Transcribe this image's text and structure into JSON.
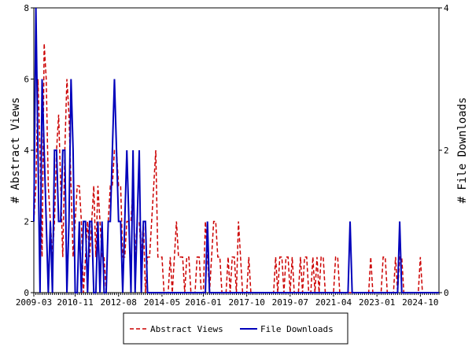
{
  "chart_data": {
    "type": "line",
    "y_label": "# Abstract Views",
    "y2_label": "# File Downloads",
    "categories": [
      "2009-03",
      null,
      null,
      null,
      null,
      null,
      null,
      null,
      null,
      null,
      null,
      null,
      null,
      null,
      null,
      null,
      null,
      null,
      null,
      null,
      "2010-11",
      null,
      null,
      null,
      null,
      null,
      null,
      null,
      null,
      null,
      null,
      null,
      null,
      null,
      null,
      null,
      null,
      null,
      null,
      null,
      null,
      "2012-08",
      null,
      null,
      null,
      null,
      null,
      null,
      null,
      null,
      null,
      null,
      null,
      null,
      null,
      null,
      null,
      null,
      null,
      null,
      null,
      null,
      "2014-05",
      null,
      null,
      null,
      null,
      null,
      null,
      null,
      null,
      null,
      null,
      null,
      null,
      null,
      null,
      null,
      null,
      null,
      null,
      null,
      "2016-01",
      null,
      null,
      null,
      null,
      null,
      null,
      null,
      null,
      null,
      null,
      null,
      null,
      null,
      null,
      null,
      null,
      null,
      null,
      null,
      null,
      "2017-10",
      null,
      null,
      null,
      null,
      null,
      null,
      null,
      null,
      null,
      null,
      null,
      null,
      null,
      null,
      null,
      null,
      null,
      null,
      null,
      null,
      "2019-07",
      null,
      null,
      null,
      null,
      null,
      null,
      null,
      null,
      null,
      null,
      null,
      null,
      null,
      null,
      null,
      null,
      null,
      null,
      null,
      null,
      "2021-04",
      null,
      null,
      null,
      null,
      null,
      null,
      null,
      null,
      null,
      null,
      null,
      null,
      null,
      null,
      null,
      null,
      null,
      null,
      null,
      null,
      "2023-01",
      null,
      null,
      null,
      null,
      null,
      null,
      null,
      null,
      null,
      null,
      null,
      null,
      null,
      null,
      null,
      null,
      null,
      null,
      null,
      null,
      "2024-10",
      null,
      null,
      null,
      null,
      null,
      null,
      null,
      null,
      null
    ],
    "series": [
      {
        "name": "Abstract Views",
        "color": "#cc0000",
        "dash": true,
        "values": [
          2,
          3,
          6,
          4,
          1,
          7,
          6,
          3,
          2,
          1,
          2,
          4,
          5,
          3,
          1,
          4,
          6,
          5,
          3,
          1,
          2,
          3,
          3,
          2,
          0,
          1,
          2,
          1,
          2,
          3,
          1,
          3,
          2,
          1,
          1,
          0,
          2,
          3,
          3,
          4,
          4,
          3,
          3,
          1,
          1,
          2,
          2,
          2,
          3,
          1,
          2,
          2,
          1,
          2,
          0,
          1,
          1,
          2,
          3,
          4,
          1,
          1,
          1,
          0,
          0,
          0,
          1,
          0,
          1,
          2,
          1,
          1,
          1,
          0,
          1,
          1,
          0,
          0,
          0,
          1,
          1,
          0,
          0,
          2,
          1,
          0,
          1,
          2,
          2,
          1,
          1,
          0,
          0,
          0,
          1,
          0,
          1,
          1,
          0,
          2,
          1,
          0,
          0,
          0,
          1,
          0,
          0,
          0,
          0,
          0,
          0,
          0,
          0,
          0,
          0,
          0,
          0,
          1,
          0,
          1,
          1,
          0,
          1,
          1,
          0,
          1,
          0,
          0,
          0,
          1,
          0,
          1,
          1,
          0,
          0,
          1,
          0,
          1,
          0,
          1,
          1,
          0,
          0,
          0,
          0,
          0,
          1,
          1,
          0,
          0,
          0,
          0,
          0,
          0,
          0,
          0,
          0,
          0,
          0,
          0,
          0,
          0,
          0,
          1,
          0,
          0,
          0,
          0,
          0,
          1,
          1,
          0,
          0,
          0,
          0,
          1,
          0,
          1,
          1,
          0,
          0,
          0,
          0,
          0,
          0,
          0,
          0,
          1,
          0,
          0,
          0,
          0,
          0,
          0,
          0,
          0,
          0
        ]
      },
      {
        "name": "File Downloads",
        "color": "#0000bb",
        "axis": "y2",
        "values": [
          1,
          4,
          2,
          0,
          3,
          2,
          1,
          0,
          1,
          0,
          2,
          2,
          1,
          1,
          2,
          2,
          0,
          1,
          3,
          2,
          0,
          0,
          1,
          0,
          1,
          1,
          0,
          1,
          1,
          0,
          0,
          1,
          0,
          1,
          0,
          0,
          1,
          1,
          2,
          3,
          2,
          1,
          1,
          0,
          1,
          2,
          1,
          0,
          2,
          0,
          1,
          2,
          0,
          1,
          1,
          0,
          0,
          0,
          0,
          0,
          0,
          0,
          0,
          0,
          0,
          0,
          0,
          0,
          0,
          0,
          0,
          0,
          0,
          0,
          0,
          0,
          0,
          0,
          0,
          0,
          0,
          0,
          0,
          0,
          1,
          0,
          0,
          0,
          0,
          0,
          0,
          0,
          0,
          0,
          0,
          0,
          0,
          0,
          0,
          0,
          0,
          0,
          0,
          0,
          0,
          0,
          0,
          0,
          0,
          0,
          0,
          0,
          0,
          0,
          0,
          0,
          0,
          0,
          0,
          0,
          0,
          0,
          0,
          0,
          0,
          0,
          0,
          0,
          0,
          0,
          0,
          0,
          0,
          0,
          0,
          0,
          0,
          0,
          0,
          0,
          0,
          0,
          0,
          0,
          0,
          0,
          0,
          0,
          0,
          0,
          0,
          0,
          0,
          1,
          0,
          0,
          0,
          0,
          0,
          0,
          0,
          0,
          0,
          0,
          0,
          0,
          0,
          0,
          0,
          0,
          0,
          0,
          0,
          0,
          0,
          0,
          0,
          1,
          0,
          0,
          0,
          0,
          0,
          0,
          0,
          0,
          0,
          0,
          0,
          0,
          0,
          0,
          0,
          0,
          0,
          0,
          0
        ]
      }
    ],
    "ylim": [
      0,
      8
    ],
    "yticks": [
      0,
      2,
      4,
      6,
      8
    ],
    "y2lim": [
      0,
      4
    ],
    "y2ticks": [
      0,
      2,
      4
    ],
    "legend": "bottom"
  }
}
